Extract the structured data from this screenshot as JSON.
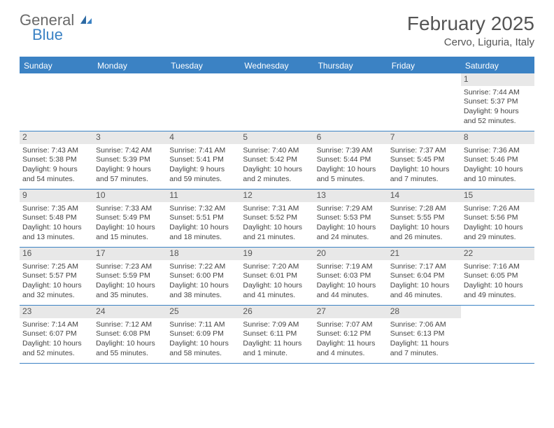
{
  "logo": {
    "general": "General",
    "blue": "Blue"
  },
  "title": {
    "month": "February 2025",
    "location": "Cervo, Liguria, Italy"
  },
  "colors": {
    "accent": "#3b82c4",
    "header_text": "#ffffff",
    "daynum_bg": "#e8e8e8",
    "text": "#444"
  },
  "day_headers": [
    "Sunday",
    "Monday",
    "Tuesday",
    "Wednesday",
    "Thursday",
    "Friday",
    "Saturday"
  ],
  "weeks": [
    [
      null,
      null,
      null,
      null,
      null,
      null,
      {
        "n": "1",
        "sr": "Sunrise: 7:44 AM",
        "ss": "Sunset: 5:37 PM",
        "d1": "Daylight: 9 hours",
        "d2": "and 52 minutes."
      }
    ],
    [
      {
        "n": "2",
        "sr": "Sunrise: 7:43 AM",
        "ss": "Sunset: 5:38 PM",
        "d1": "Daylight: 9 hours",
        "d2": "and 54 minutes."
      },
      {
        "n": "3",
        "sr": "Sunrise: 7:42 AM",
        "ss": "Sunset: 5:39 PM",
        "d1": "Daylight: 9 hours",
        "d2": "and 57 minutes."
      },
      {
        "n": "4",
        "sr": "Sunrise: 7:41 AM",
        "ss": "Sunset: 5:41 PM",
        "d1": "Daylight: 9 hours",
        "d2": "and 59 minutes."
      },
      {
        "n": "5",
        "sr": "Sunrise: 7:40 AM",
        "ss": "Sunset: 5:42 PM",
        "d1": "Daylight: 10 hours",
        "d2": "and 2 minutes."
      },
      {
        "n": "6",
        "sr": "Sunrise: 7:39 AM",
        "ss": "Sunset: 5:44 PM",
        "d1": "Daylight: 10 hours",
        "d2": "and 5 minutes."
      },
      {
        "n": "7",
        "sr": "Sunrise: 7:37 AM",
        "ss": "Sunset: 5:45 PM",
        "d1": "Daylight: 10 hours",
        "d2": "and 7 minutes."
      },
      {
        "n": "8",
        "sr": "Sunrise: 7:36 AM",
        "ss": "Sunset: 5:46 PM",
        "d1": "Daylight: 10 hours",
        "d2": "and 10 minutes."
      }
    ],
    [
      {
        "n": "9",
        "sr": "Sunrise: 7:35 AM",
        "ss": "Sunset: 5:48 PM",
        "d1": "Daylight: 10 hours",
        "d2": "and 13 minutes."
      },
      {
        "n": "10",
        "sr": "Sunrise: 7:33 AM",
        "ss": "Sunset: 5:49 PM",
        "d1": "Daylight: 10 hours",
        "d2": "and 15 minutes."
      },
      {
        "n": "11",
        "sr": "Sunrise: 7:32 AM",
        "ss": "Sunset: 5:51 PM",
        "d1": "Daylight: 10 hours",
        "d2": "and 18 minutes."
      },
      {
        "n": "12",
        "sr": "Sunrise: 7:31 AM",
        "ss": "Sunset: 5:52 PM",
        "d1": "Daylight: 10 hours",
        "d2": "and 21 minutes."
      },
      {
        "n": "13",
        "sr": "Sunrise: 7:29 AM",
        "ss": "Sunset: 5:53 PM",
        "d1": "Daylight: 10 hours",
        "d2": "and 24 minutes."
      },
      {
        "n": "14",
        "sr": "Sunrise: 7:28 AM",
        "ss": "Sunset: 5:55 PM",
        "d1": "Daylight: 10 hours",
        "d2": "and 26 minutes."
      },
      {
        "n": "15",
        "sr": "Sunrise: 7:26 AM",
        "ss": "Sunset: 5:56 PM",
        "d1": "Daylight: 10 hours",
        "d2": "and 29 minutes."
      }
    ],
    [
      {
        "n": "16",
        "sr": "Sunrise: 7:25 AM",
        "ss": "Sunset: 5:57 PM",
        "d1": "Daylight: 10 hours",
        "d2": "and 32 minutes."
      },
      {
        "n": "17",
        "sr": "Sunrise: 7:23 AM",
        "ss": "Sunset: 5:59 PM",
        "d1": "Daylight: 10 hours",
        "d2": "and 35 minutes."
      },
      {
        "n": "18",
        "sr": "Sunrise: 7:22 AM",
        "ss": "Sunset: 6:00 PM",
        "d1": "Daylight: 10 hours",
        "d2": "and 38 minutes."
      },
      {
        "n": "19",
        "sr": "Sunrise: 7:20 AM",
        "ss": "Sunset: 6:01 PM",
        "d1": "Daylight: 10 hours",
        "d2": "and 41 minutes."
      },
      {
        "n": "20",
        "sr": "Sunrise: 7:19 AM",
        "ss": "Sunset: 6:03 PM",
        "d1": "Daylight: 10 hours",
        "d2": "and 44 minutes."
      },
      {
        "n": "21",
        "sr": "Sunrise: 7:17 AM",
        "ss": "Sunset: 6:04 PM",
        "d1": "Daylight: 10 hours",
        "d2": "and 46 minutes."
      },
      {
        "n": "22",
        "sr": "Sunrise: 7:16 AM",
        "ss": "Sunset: 6:05 PM",
        "d1": "Daylight: 10 hours",
        "d2": "and 49 minutes."
      }
    ],
    [
      {
        "n": "23",
        "sr": "Sunrise: 7:14 AM",
        "ss": "Sunset: 6:07 PM",
        "d1": "Daylight: 10 hours",
        "d2": "and 52 minutes."
      },
      {
        "n": "24",
        "sr": "Sunrise: 7:12 AM",
        "ss": "Sunset: 6:08 PM",
        "d1": "Daylight: 10 hours",
        "d2": "and 55 minutes."
      },
      {
        "n": "25",
        "sr": "Sunrise: 7:11 AM",
        "ss": "Sunset: 6:09 PM",
        "d1": "Daylight: 10 hours",
        "d2": "and 58 minutes."
      },
      {
        "n": "26",
        "sr": "Sunrise: 7:09 AM",
        "ss": "Sunset: 6:11 PM",
        "d1": "Daylight: 11 hours",
        "d2": "and 1 minute."
      },
      {
        "n": "27",
        "sr": "Sunrise: 7:07 AM",
        "ss": "Sunset: 6:12 PM",
        "d1": "Daylight: 11 hours",
        "d2": "and 4 minutes."
      },
      {
        "n": "28",
        "sr": "Sunrise: 7:06 AM",
        "ss": "Sunset: 6:13 PM",
        "d1": "Daylight: 11 hours",
        "d2": "and 7 minutes."
      },
      null
    ]
  ]
}
